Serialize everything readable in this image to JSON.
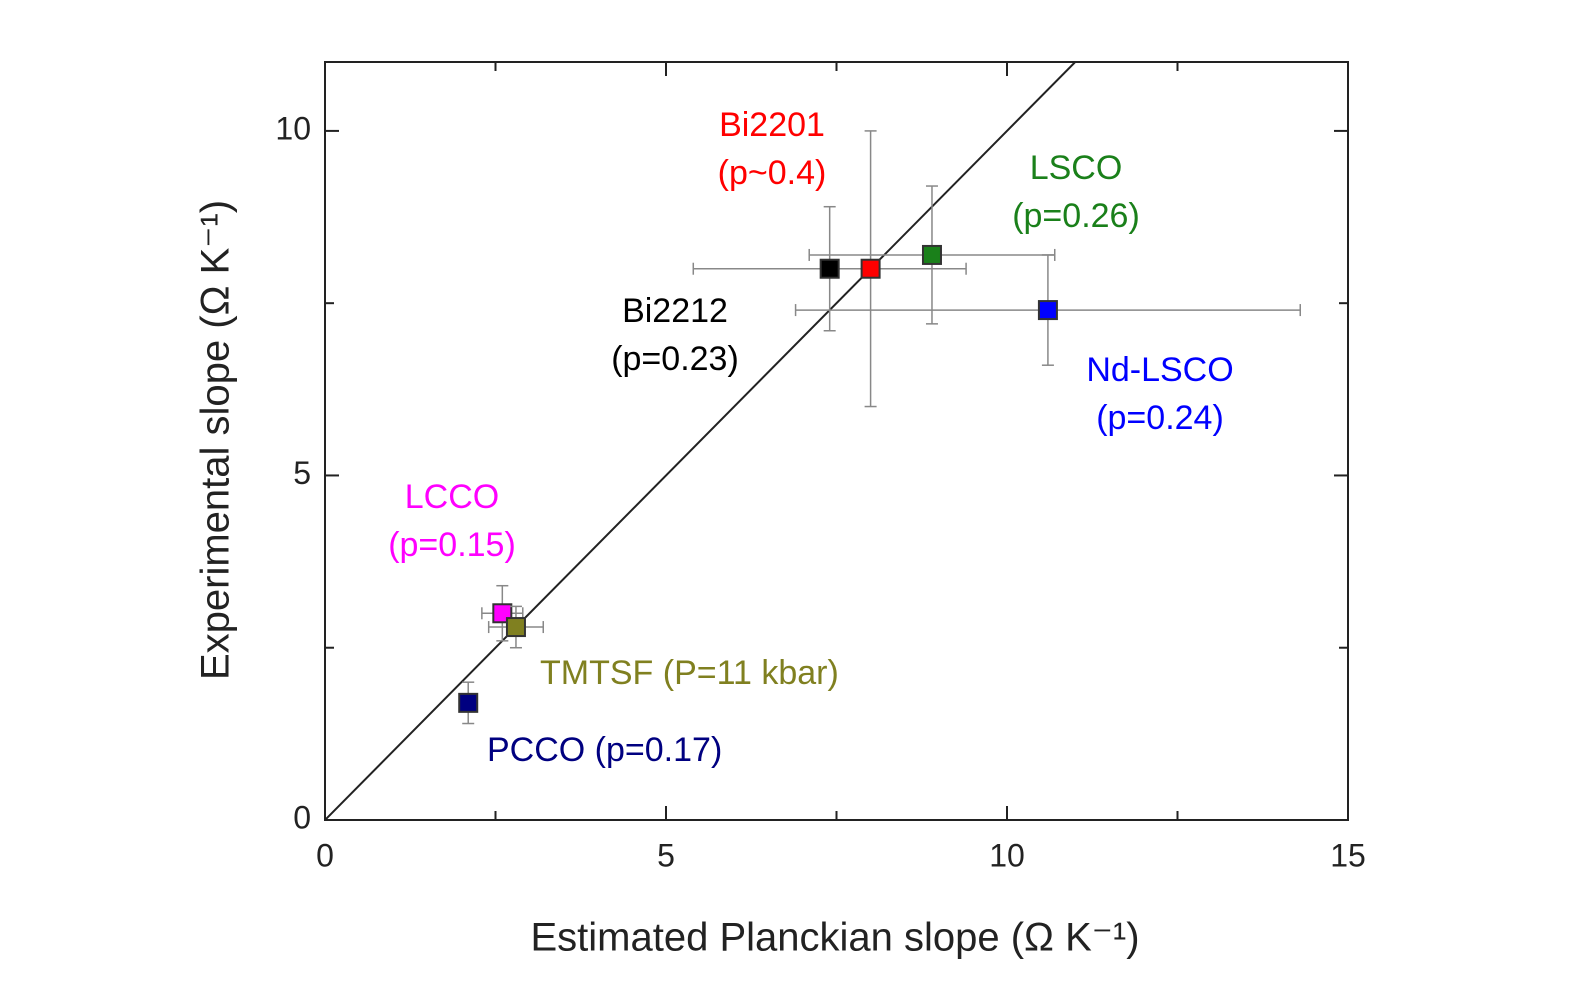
{
  "chart_data": {
    "type": "scatter",
    "x_label": "Estimated Planckian slope (Ω K⁻¹)",
    "y_label": "Experimental slope (Ω K⁻¹)",
    "xlim": [
      0,
      15
    ],
    "ylim": [
      0,
      11
    ],
    "xticks": [
      0,
      5,
      10,
      15
    ],
    "yticks": [
      0,
      5,
      10
    ],
    "xminorticks": [
      2.5,
      7.5,
      12.5
    ],
    "yminorticks": [
      2.5,
      7.5
    ],
    "series": [
      {
        "label": [
          "Bi2212",
          "(p=0.23)"
        ],
        "color": "#000000",
        "x": 7.4,
        "y": 8.0,
        "xerr": 2.0,
        "yerr": 0.9
      },
      {
        "label": [
          "Bi2201",
          "(p~0.4)"
        ],
        "color": "#ff0000",
        "x": 8.0,
        "y": 8.0,
        "xerr": null,
        "yerr": 2.0
      },
      {
        "label": [
          "LSCO",
          "(p=0.26)"
        ],
        "color": "#1a801a",
        "x": 8.9,
        "y": 8.2,
        "xerr": 1.8,
        "yerr": 1.0
      },
      {
        "label": [
          "Nd-LSCO",
          "(p=0.24)"
        ],
        "color": "#0000ff",
        "x": 10.6,
        "y": 7.4,
        "xerr": 3.7,
        "yerr": 0.8
      },
      {
        "label": [
          "LCCO",
          "(p=0.15)"
        ],
        "color": "#ff00ff",
        "x": 2.6,
        "y": 3.0,
        "xerr": 0.3,
        "yerr": 0.4
      },
      {
        "label": [
          "TMTSF (P=11 kbar)"
        ],
        "color": "#808020",
        "x": 2.8,
        "y": 2.8,
        "xerr": 0.4,
        "yerr": 0.3
      },
      {
        "label": [
          "PCCO (p=0.17)"
        ],
        "color": "#000080",
        "x": 2.1,
        "y": 1.7,
        "xerr": null,
        "yerr": 0.3
      }
    ]
  }
}
